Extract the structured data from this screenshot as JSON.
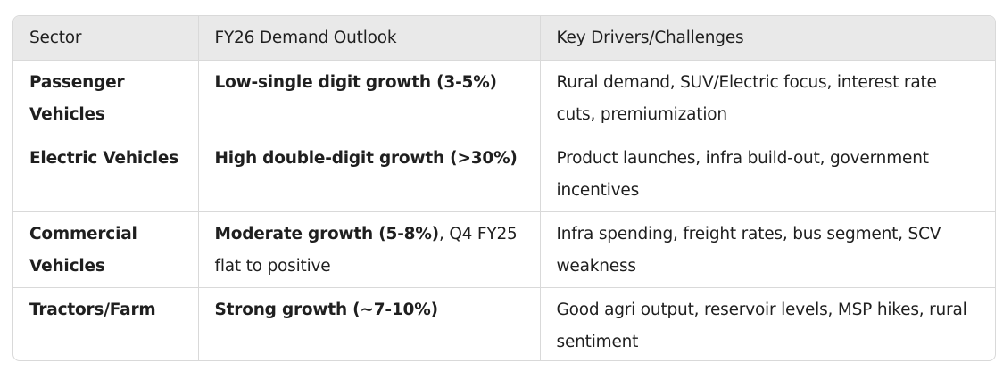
{
  "table": {
    "headers": [
      "Sector",
      "FY26 Demand Outlook",
      "Key Drivers/Challenges"
    ],
    "rows": [
      {
        "sector": "Passenger Vehicles",
        "outlook_bold": "Low-single digit growth (3-5%)",
        "outlook_rest": "",
        "drivers": "Rural demand, SUV/Electric focus, interest rate cuts, premiumization"
      },
      {
        "sector": "Electric Vehicles",
        "outlook_bold": "High double-digit growth (>30%)",
        "outlook_rest": "",
        "drivers": "Product launches, infra build-out, government incentives"
      },
      {
        "sector": "Commercial Vehicles",
        "outlook_bold": "Moderate growth (5-8%)",
        "outlook_rest": ", Q4 FY25 flat to positive",
        "drivers": "Infra spending, freight rates, bus segment, SCV weakness"
      },
      {
        "sector": "Tractors/Farm",
        "outlook_bold": "Strong growth (~7-10%)",
        "outlook_rest": "",
        "drivers": "Good agri output, reservoir levels, MSP hikes, rural sentiment"
      }
    ]
  }
}
